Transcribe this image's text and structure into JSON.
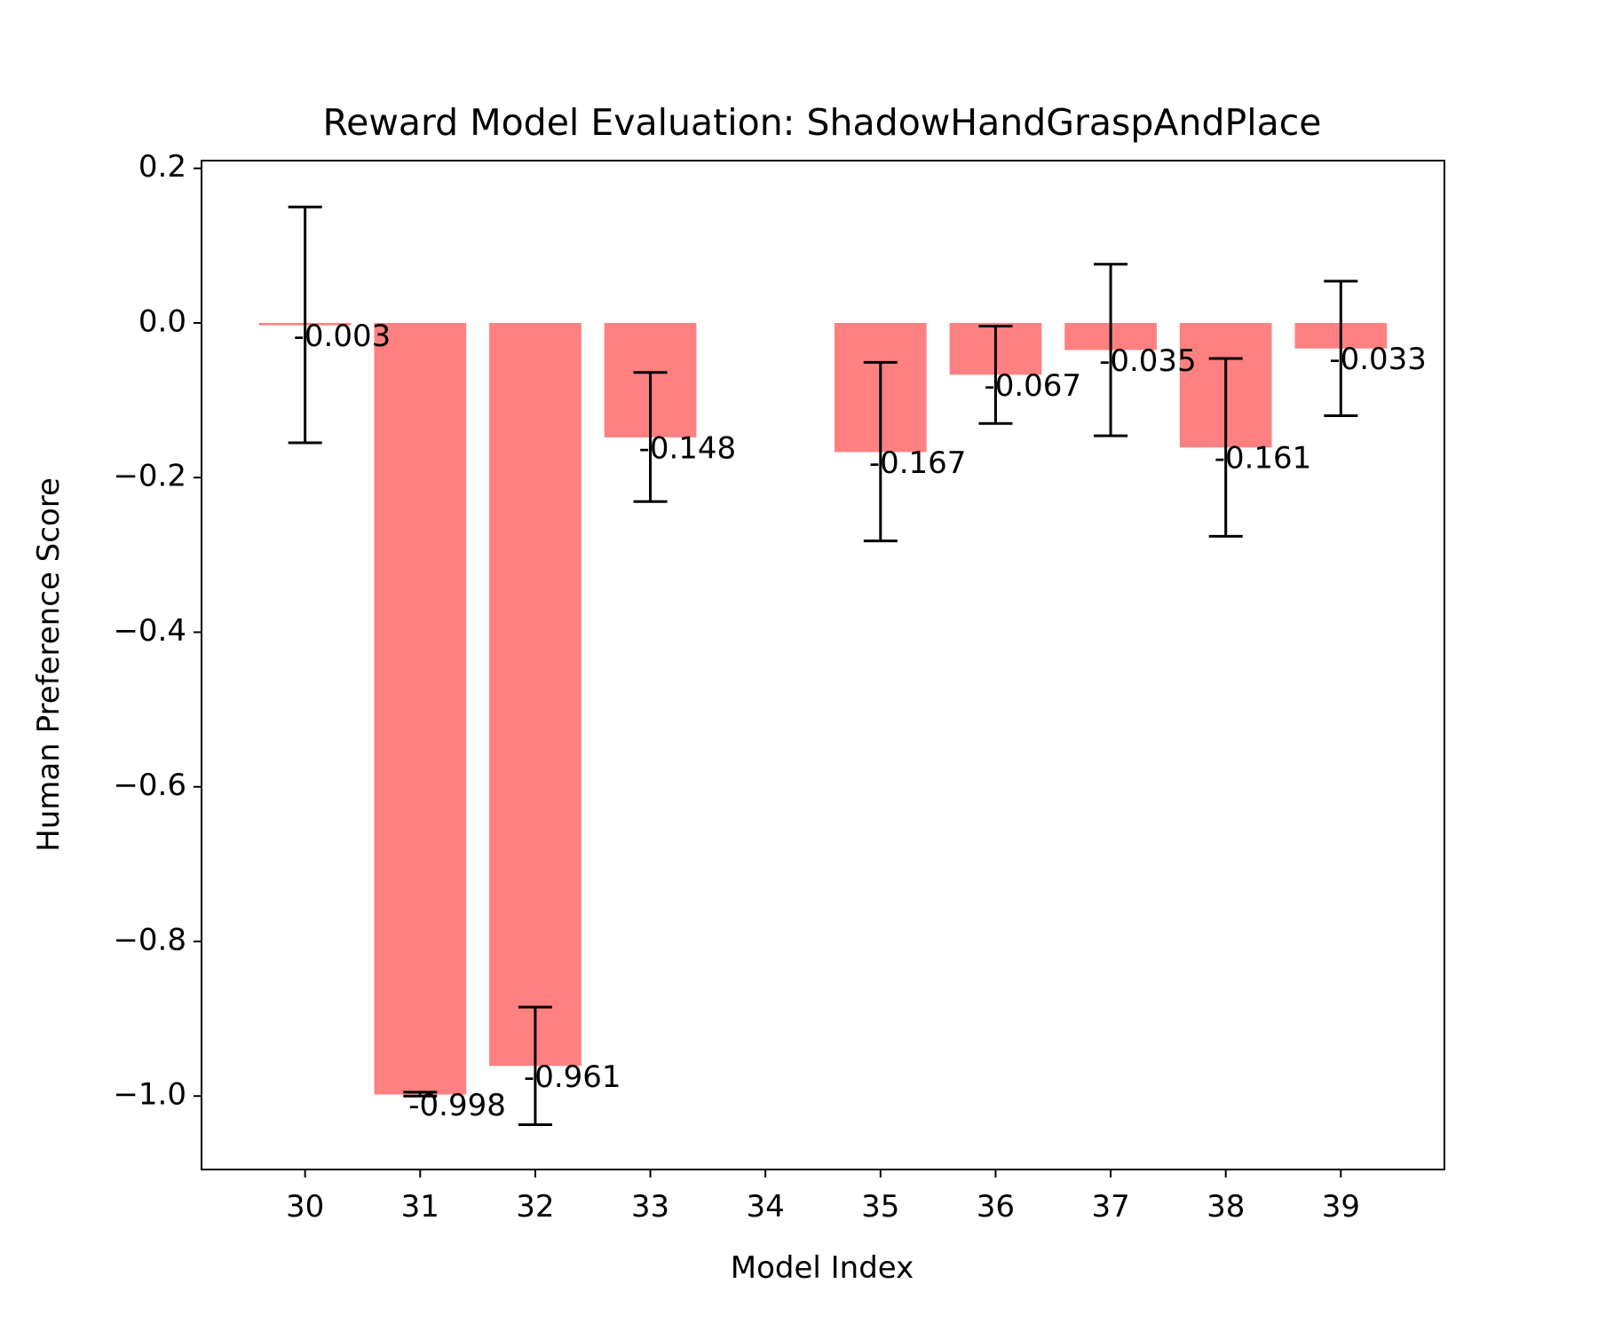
{
  "chart_data": {
    "type": "bar",
    "title": "Reward Model Evaluation: ShadowHandGraspAndPlace",
    "xlabel": "Model Index",
    "ylabel": "Human Preference Score",
    "categories": [
      "30",
      "31",
      "32",
      "33",
      "34",
      "35",
      "36",
      "37",
      "38",
      "39"
    ],
    "x": [
      30,
      31,
      32,
      33,
      34,
      35,
      36,
      37,
      38,
      39
    ],
    "values": [
      -0.003,
      -0.998,
      -0.961,
      -0.148,
      null,
      -0.167,
      -0.067,
      -0.035,
      -0.161,
      -0.033
    ],
    "value_labels": [
      "-0.003",
      "-0.998",
      "-0.961",
      "-0.148",
      "",
      "-0.167",
      "-0.067",
      "-0.035",
      "-0.161",
      "-0.033"
    ],
    "error_bars": [
      {
        "x": 30,
        "low": -0.155,
        "high": 0.15
      },
      {
        "x": 31,
        "low": -1.0,
        "high": -0.995
      },
      {
        "x": 32,
        "low": -1.037,
        "high": -0.885
      },
      {
        "x": 33,
        "low": -0.231,
        "high": -0.064
      },
      {
        "x": 35,
        "low": -0.282,
        "high": -0.051
      },
      {
        "x": 36,
        "low": -0.13,
        "high": -0.004
      },
      {
        "x": 37,
        "low": -0.146,
        "high": 0.076
      },
      {
        "x": 38,
        "low": -0.276,
        "high": -0.046
      },
      {
        "x": 39,
        "low": -0.12,
        "high": 0.054
      }
    ],
    "xlim": [
      29.1,
      39.9
    ],
    "ylim": [
      -1.095,
      0.21
    ],
    "yticks": [
      0.2,
      0.0,
      -0.2,
      -0.4,
      -0.6,
      -0.8,
      -1.0
    ],
    "ytick_labels": [
      "0.2",
      "0.0",
      "−0.2",
      "−0.4",
      "−0.6",
      "−0.8",
      "−1.0"
    ],
    "xticks": [
      30,
      31,
      32,
      33,
      34,
      35,
      36,
      37,
      38,
      39
    ],
    "bar_color": "#ff8080",
    "errorbar_color": "#000000",
    "grid": false,
    "legend": "none"
  }
}
